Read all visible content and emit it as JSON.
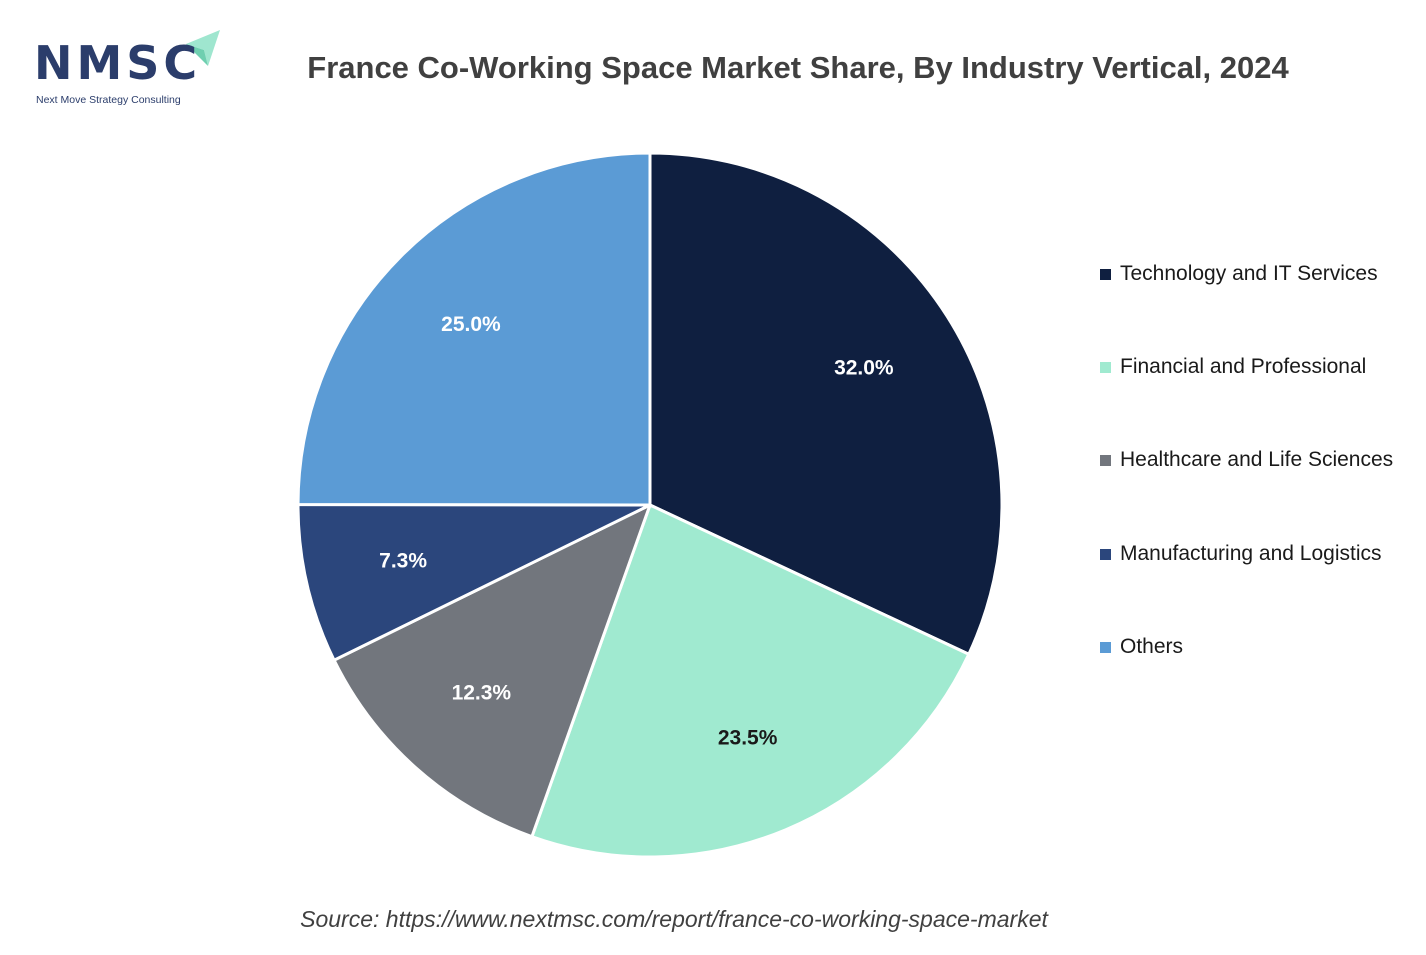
{
  "logo": {
    "text": "NMSC",
    "subtitle": "Next Move Strategy Consulting",
    "colors": {
      "text": "#2b3d6b",
      "arrow": "#9fe6cf"
    }
  },
  "source": "Source: https://www.nextmsc.com/report/france-co-working-space-market",
  "chart_data": {
    "type": "pie",
    "title": "France Co-Working Space Market Share, By Industry Vertical, 2024",
    "categories": [
      "Technology and IT Services",
      "Financial and Professional",
      "Healthcare and Life Sciences",
      "Manufacturing and Logistics",
      "Others"
    ],
    "values": [
      32.0,
      23.5,
      12.3,
      7.3,
      25.0
    ],
    "labels": [
      "32.0%",
      "23.5%",
      "12.3%",
      "7.3%",
      "25.0%"
    ],
    "colors": [
      "#0f1f40",
      "#a0ead0",
      "#72767d",
      "#2b467c",
      "#5b9bd5"
    ],
    "label_colors": [
      "#ffffff",
      "#1a1a1a",
      "#ffffff",
      "#ffffff",
      "#ffffff"
    ],
    "start_angle_deg": 0,
    "direction": "clockwise",
    "legend_position": "right"
  }
}
